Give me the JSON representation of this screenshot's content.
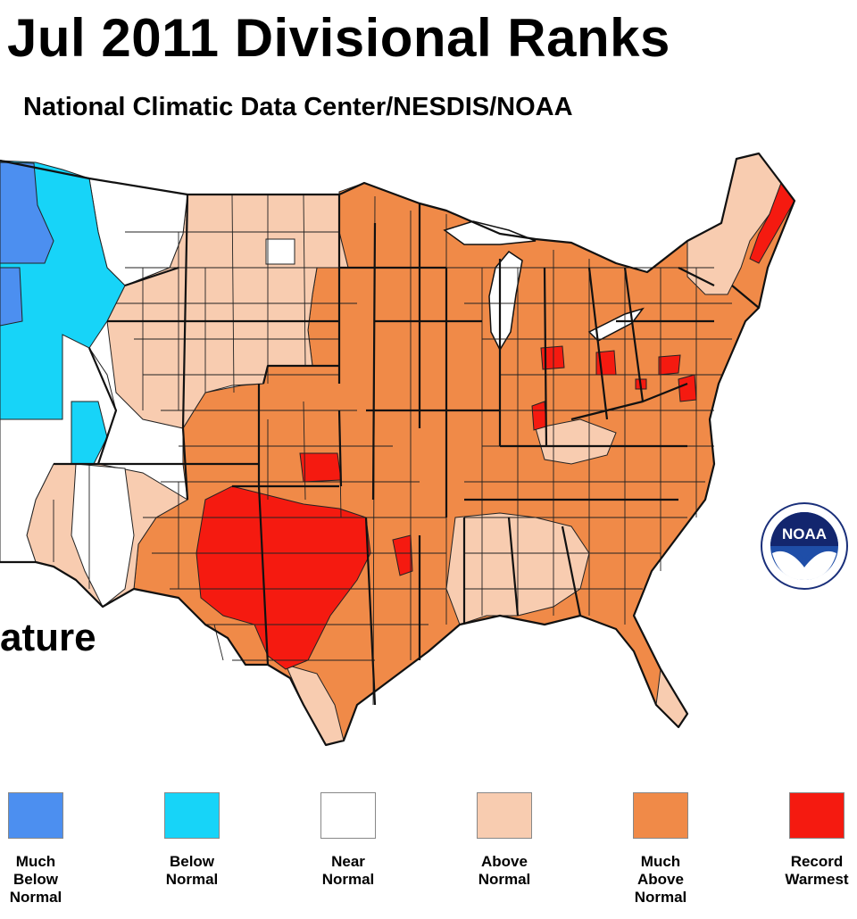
{
  "header": {
    "title": "Jul 2011 Divisional Ranks",
    "subtitle": "National Climatic Data Center/NESDIS/NOAA"
  },
  "side_label": "ature",
  "logo": {
    "text": "NOAA",
    "icon": "noaa-logo-icon"
  },
  "colors": {
    "much_below_normal": "#4c8ff0",
    "below_normal": "#17d4f8",
    "near_normal": "#ffffff",
    "above_normal": "#f8ccb0",
    "much_above_normal": "#f08a48",
    "record_warmest": "#f51a10"
  },
  "legend": [
    {
      "label": "Much\nBelow\nNormal",
      "color": "#4c8ff0"
    },
    {
      "label": "Below\nNormal",
      "color": "#17d4f8"
    },
    {
      "label": "Near\nNormal",
      "color": "#ffffff"
    },
    {
      "label": "Above\nNormal",
      "color": "#f8ccb0"
    },
    {
      "label": "Much\nAbove\nNormal",
      "color": "#f08a48"
    },
    {
      "label": "Record\nWarmest",
      "color": "#f51a10"
    }
  ]
}
